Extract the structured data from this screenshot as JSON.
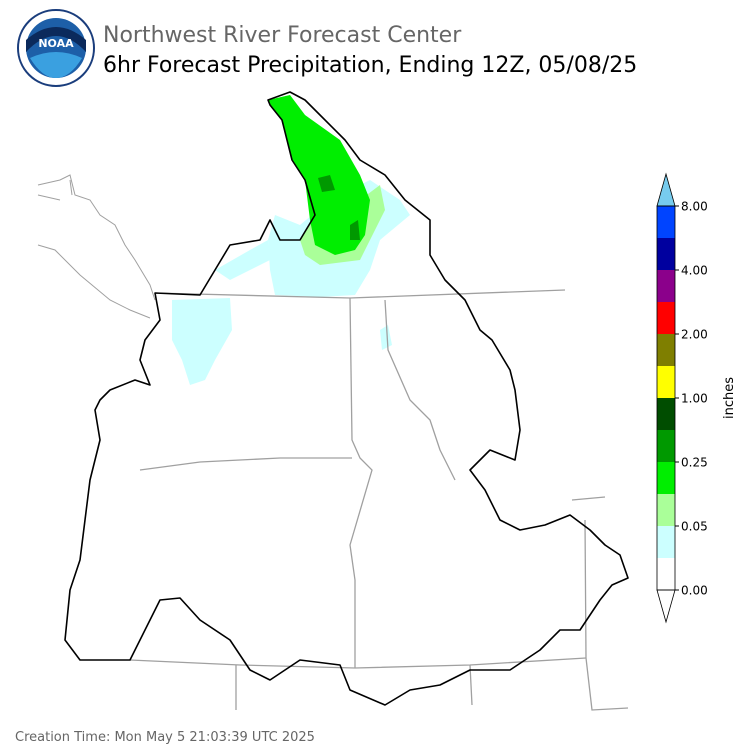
{
  "header": {
    "logo": "NOAA",
    "title": "Northwest River Forecast Center",
    "subtitle": "6hr Forecast Precipitation, Ending 12Z, 05/08/25"
  },
  "colorbar": {
    "label": "inches",
    "levels": [
      "0.00",
      "0.05",
      "0.25",
      "1.00",
      "2.00",
      "4.00",
      "8.00"
    ],
    "colors": [
      "#ffffff",
      "#ccffff",
      "#aaff99",
      "#00ee00",
      "#009900",
      "#004d00",
      "#ffff00",
      "#7f7f00",
      "#ff0000",
      "#8b008b",
      "#00009f",
      "#0044ff"
    ],
    "over_color": "#77ccee",
    "under_color": "#ffffff"
  },
  "footer": {
    "creation_time": "Creation Time: Mon May 5 21:03:39 UTC 2025"
  }
}
